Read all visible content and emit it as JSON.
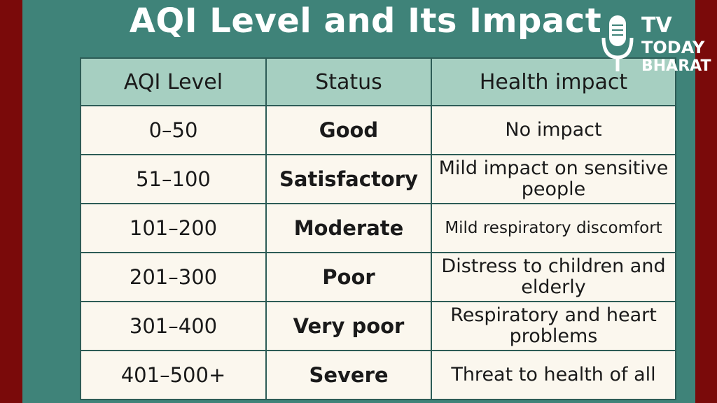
{
  "title": "AQI Level and Its Impact",
  "table": {
    "headers": [
      "AQI Level",
      "Status",
      "Health impact"
    ],
    "rows": [
      {
        "level": "0–50",
        "status": "Good",
        "impact": "No impact"
      },
      {
        "level": "51–100",
        "status": "Satisfactory",
        "impact": "Mild impact on sensitive people"
      },
      {
        "level": "101–200",
        "status": "Moderate",
        "impact": "Mild respiratory discomfort"
      },
      {
        "level": "201–300",
        "status": "Poor",
        "impact": "Distress to children and elderly"
      },
      {
        "level": "301–400",
        "status": "Very poor",
        "impact": "Respiratory and heart problems"
      },
      {
        "level": "401–500+",
        "status": "Severe",
        "impact": "Threat to health of all"
      }
    ]
  },
  "logo": {
    "line1": "TV",
    "line2": "TODAY",
    "line3": "BHARAT",
    "icon": "microphone-icon"
  },
  "colors": {
    "background_border": "#7a0a0a",
    "panel": "#3f8379",
    "header_row": "#a6cfc1",
    "cells": "#fbf7ee"
  }
}
